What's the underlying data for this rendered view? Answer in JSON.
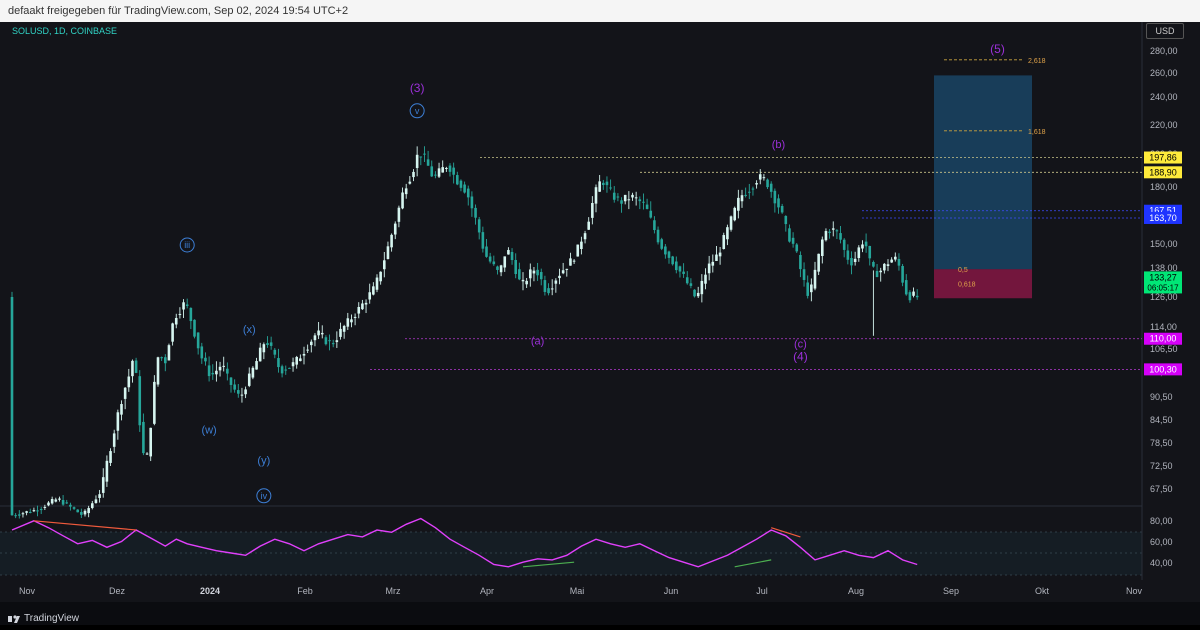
{
  "header": {
    "shared_by": "defaakt freigegeben für TradingView.com, Sep 02, 2024 19:54 UTC+2"
  },
  "symbol_label": "SOLUSD, 1D, COINBASE",
  "currency_button": "USD",
  "footer": {
    "brand": "TradingView"
  },
  "colors": {
    "bull": "#d6f5f0",
    "bear": "#26a69a",
    "wave_purple": "#9b30d9",
    "wave_blue": "#3d7fd6",
    "rsi_line": "#e040fb",
    "label_yellow": "#ffeb3b",
    "label_blue": "#1f34ff",
    "label_magenta": "#d500f9",
    "label_green": "#00e676"
  },
  "chart_data": {
    "type": "candlestick",
    "x_ticks": [
      "Nov",
      "Dez",
      "2024",
      "Feb",
      "Mrz",
      "Apr",
      "Mai",
      "Jun",
      "Jul",
      "Aug",
      "Sep",
      "Okt",
      "Nov"
    ],
    "y_ticks": [
      "280,00",
      "260,00",
      "240,00",
      "220,00",
      "200,00",
      "180,00",
      "150,00",
      "138,00",
      "126,00",
      "114,00",
      "106,50",
      "99,50",
      "90,50",
      "84,50",
      "78,50",
      "72,50",
      "67,50"
    ],
    "price_path": [
      [
        0,
        58
      ],
      [
        7,
        60
      ],
      [
        13,
        64
      ],
      [
        20,
        58
      ],
      [
        25,
        67
      ],
      [
        30,
        88
      ],
      [
        33,
        100
      ],
      [
        34,
        106
      ],
      [
        35,
        90
      ],
      [
        36,
        78
      ],
      [
        37,
        73
      ],
      [
        38,
        77
      ],
      [
        39,
        90
      ],
      [
        40,
        100
      ],
      [
        41,
        108
      ],
      [
        42,
        100
      ],
      [
        45,
        118
      ],
      [
        48,
        124
      ],
      [
        52,
        105
      ],
      [
        55,
        98
      ],
      [
        58,
        102
      ],
      [
        60,
        96
      ],
      [
        63,
        90
      ],
      [
        66,
        99
      ],
      [
        68,
        104
      ],
      [
        70,
        110
      ],
      [
        74,
        100
      ],
      [
        78,
        102
      ],
      [
        84,
        112
      ],
      [
        88,
        108
      ],
      [
        92,
        115
      ],
      [
        96,
        122
      ],
      [
        100,
        130
      ],
      [
        103,
        145
      ],
      [
        106,
        165
      ],
      [
        108,
        180
      ],
      [
        110,
        188
      ],
      [
        112,
        202
      ],
      [
        114,
        195
      ],
      [
        116,
        185
      ],
      [
        118,
        190
      ],
      [
        120,
        194
      ],
      [
        122,
        185
      ],
      [
        125,
        178
      ],
      [
        128,
        160
      ],
      [
        130,
        145
      ],
      [
        132,
        140
      ],
      [
        134,
        135
      ],
      [
        136,
        148
      ],
      [
        138,
        140
      ],
      [
        140,
        130
      ],
      [
        142,
        135
      ],
      [
        144,
        138
      ],
      [
        147,
        128
      ],
      [
        150,
        135
      ],
      [
        153,
        140
      ],
      [
        155,
        145
      ],
      [
        158,
        160
      ],
      [
        160,
        175
      ],
      [
        162,
        185
      ],
      [
        164,
        178
      ],
      [
        167,
        172
      ],
      [
        170,
        175
      ],
      [
        172,
        173
      ],
      [
        174,
        170
      ],
      [
        176,
        160
      ],
      [
        178,
        150
      ],
      [
        180,
        145
      ],
      [
        182,
        140
      ],
      [
        185,
        133
      ],
      [
        188,
        125
      ],
      [
        191,
        138
      ],
      [
        194,
        145
      ],
      [
        196,
        155
      ],
      [
        198,
        165
      ],
      [
        200,
        175
      ],
      [
        203,
        180
      ],
      [
        205,
        186
      ],
      [
        207,
        184
      ],
      [
        209,
        176
      ],
      [
        211,
        168
      ],
      [
        213,
        155
      ],
      [
        215,
        148
      ],
      [
        217,
        134
      ],
      [
        219,
        126
      ],
      [
        221,
        140
      ],
      [
        223,
        156
      ],
      [
        225,
        158
      ],
      [
        227,
        155
      ],
      [
        229,
        144
      ],
      [
        231,
        140
      ],
      [
        232,
        146
      ],
      [
        234,
        153
      ],
      [
        236,
        137
      ],
      [
        238,
        136
      ],
      [
        240,
        140
      ],
      [
        242,
        143
      ],
      [
        243,
        142
      ],
      [
        245,
        130
      ],
      [
        246,
        126
      ],
      [
        247,
        127
      ],
      [
        248,
        126
      ]
    ],
    "rsi_path": [
      [
        0,
        70
      ],
      [
        6,
        78
      ],
      [
        10,
        72
      ],
      [
        14,
        65
      ],
      [
        18,
        58
      ],
      [
        22,
        61
      ],
      [
        26,
        55
      ],
      [
        30,
        60
      ],
      [
        34,
        70
      ],
      [
        38,
        63
      ],
      [
        42,
        56
      ],
      [
        45,
        62
      ],
      [
        48,
        58
      ],
      [
        52,
        55
      ],
      [
        56,
        52
      ],
      [
        60,
        50
      ],
      [
        64,
        48
      ],
      [
        68,
        56
      ],
      [
        72,
        62
      ],
      [
        76,
        58
      ],
      [
        80,
        52
      ],
      [
        84,
        58
      ],
      [
        88,
        62
      ],
      [
        92,
        66
      ],
      [
        96,
        64
      ],
      [
        100,
        70
      ],
      [
        104,
        68
      ],
      [
        108,
        75
      ],
      [
        112,
        80
      ],
      [
        116,
        72
      ],
      [
        120,
        62
      ],
      [
        124,
        55
      ],
      [
        128,
        48
      ],
      [
        132,
        40
      ],
      [
        136,
        38
      ],
      [
        140,
        42
      ],
      [
        144,
        45
      ],
      [
        148,
        44
      ],
      [
        152,
        48
      ],
      [
        156,
        56
      ],
      [
        160,
        62
      ],
      [
        164,
        58
      ],
      [
        168,
        55
      ],
      [
        172,
        58
      ],
      [
        176,
        52
      ],
      [
        180,
        46
      ],
      [
        184,
        42
      ],
      [
        188,
        38
      ],
      [
        192,
        43
      ],
      [
        196,
        48
      ],
      [
        200,
        55
      ],
      [
        204,
        62
      ],
      [
        208,
        70
      ],
      [
        212,
        65
      ],
      [
        216,
        55
      ],
      [
        220,
        44
      ],
      [
        224,
        48
      ],
      [
        228,
        52
      ],
      [
        232,
        48
      ],
      [
        236,
        46
      ],
      [
        240,
        52
      ],
      [
        244,
        44
      ],
      [
        248,
        40
      ]
    ],
    "rsi_ticks": [
      "80,00",
      "60,00",
      "40,00"
    ],
    "horizontal_levels": [
      {
        "label": "197,86",
        "price": 197.86,
        "style": "yellow"
      },
      {
        "label": "188,90",
        "price": 188.9,
        "style": "yellow"
      },
      {
        "label": "167,51",
        "price": 167.51,
        "style": "blue"
      },
      {
        "label": "163,70",
        "price": 163.7,
        "style": "blue"
      },
      {
        "label": "110,00",
        "price": 110,
        "style": "magenta"
      },
      {
        "label": "100,30",
        "price": 100.3,
        "style": "magenta"
      }
    ],
    "current_price": {
      "label": "133,27",
      "countdown": "06:05:17"
    },
    "fib_levels": [
      {
        "label": "2,618",
        "price": 272
      },
      {
        "label": "1,618",
        "price": 216
      },
      {
        "label": "0,5",
        "price": 137.5
      },
      {
        "label": "0,618",
        "price": 131.5
      }
    ],
    "wave_labels": [
      {
        "text": "(3)",
        "day": 111,
        "price": 244,
        "color": "purple"
      },
      {
        "text": "v",
        "day": 111,
        "price": 228,
        "color": "blue",
        "circled": true
      },
      {
        "text": "(b)",
        "day": 210,
        "price": 204,
        "color": "purple"
      },
      {
        "text": "(5)",
        "day": 270,
        "price": 282,
        "color": "purple"
      },
      {
        "text": "iii",
        "day": 48,
        "price": 148,
        "color": "blue",
        "circled": true
      },
      {
        "text": "(x)",
        "day": 65,
        "price": 112,
        "color": "blue"
      },
      {
        "text": "(a)",
        "day": 144,
        "price": 108,
        "color": "purple"
      },
      {
        "text": "(c)",
        "day": 216,
        "price": 107,
        "color": "purple"
      },
      {
        "text": "(4)",
        "day": 216,
        "price": 103,
        "color": "purple"
      },
      {
        "text": "(w)",
        "day": 54,
        "price": 81,
        "color": "blue"
      },
      {
        "text": "(y)",
        "day": 69,
        "price": 73,
        "color": "blue"
      },
      {
        "text": "iv",
        "day": 69,
        "price": 64,
        "color": "blue",
        "circled": true
      }
    ]
  }
}
